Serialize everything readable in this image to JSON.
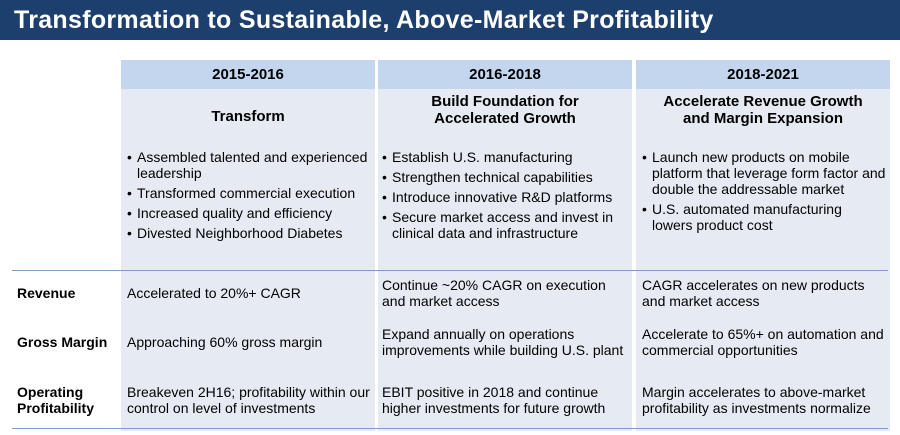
{
  "title": "Transformation to Sustainable, Above-Market Profitability",
  "bullet_glyph": "•",
  "columns": [
    {
      "period": "2015-2016",
      "subtitle_lines": [
        "Transform"
      ],
      "bullets": [
        "Assembled talented and experienced leadership",
        "Transformed commercial execution",
        "Increased quality and efficiency",
        "Divested Neighborhood Diabetes"
      ]
    },
    {
      "period": "2016-2018",
      "subtitle_lines": [
        "Build Foundation for",
        "Accelerated Growth"
      ],
      "bullets": [
        "Establish U.S. manufacturing",
        "Strengthen technical capabilities",
        "Introduce innovative R&D platforms",
        "Secure market access and invest in clinical data and infrastructure"
      ]
    },
    {
      "period": "2018-2021",
      "subtitle_lines": [
        "Accelerate Revenue Growth",
        "and Margin Expansion"
      ],
      "bullets": [
        "Launch new products on mobile platform that leverage form factor and double the addressable market",
        "U.S. automated manufacturing lowers product cost"
      ]
    }
  ],
  "rows": [
    {
      "label": "Revenue",
      "cells": [
        "Accelerated to 20%+ CAGR",
        "Continue ~20% CAGR on execution and market access",
        "CAGR accelerates on new products and market access"
      ]
    },
    {
      "label": "Gross Margin",
      "cells": [
        "Approaching 60% gross margin",
        "Expand annually on operations improvements while building U.S. plant",
        "Accelerate to 65%+ on automation and commercial opportunities"
      ]
    },
    {
      "label": "Operating Profitability",
      "cells": [
        "Breakeven 2H16; profitability within our control on level of investments",
        "EBIT positive in 2018 and continue higher investments for future growth",
        "Margin accelerates to above-market profitability as investments normalize"
      ]
    }
  ]
}
